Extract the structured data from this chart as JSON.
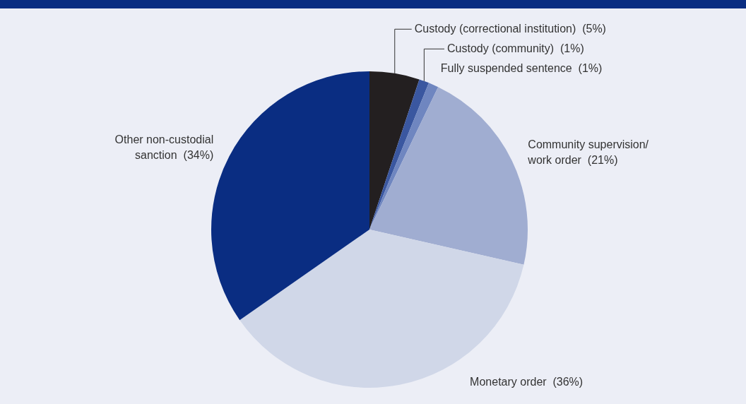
{
  "chart_data": {
    "type": "pie",
    "categories": [
      "Custody (correctional institution)",
      "Custody (community)",
      "Fully suspended sentence",
      "Community supervision/ work order",
      "Monetary order",
      "Other non-custodial sanction"
    ],
    "values": [
      5,
      1,
      1,
      21,
      36,
      34
    ],
    "value_labels": [
      "(5%)",
      "(1%)",
      "(1%)",
      "(21%)",
      "(36%)",
      "(34%)"
    ],
    "colors": [
      "#231f20",
      "#3a57a0",
      "#6f86c0",
      "#a0add1",
      "#d0d7e8",
      "#0a2d82"
    ],
    "legend": false
  }
}
